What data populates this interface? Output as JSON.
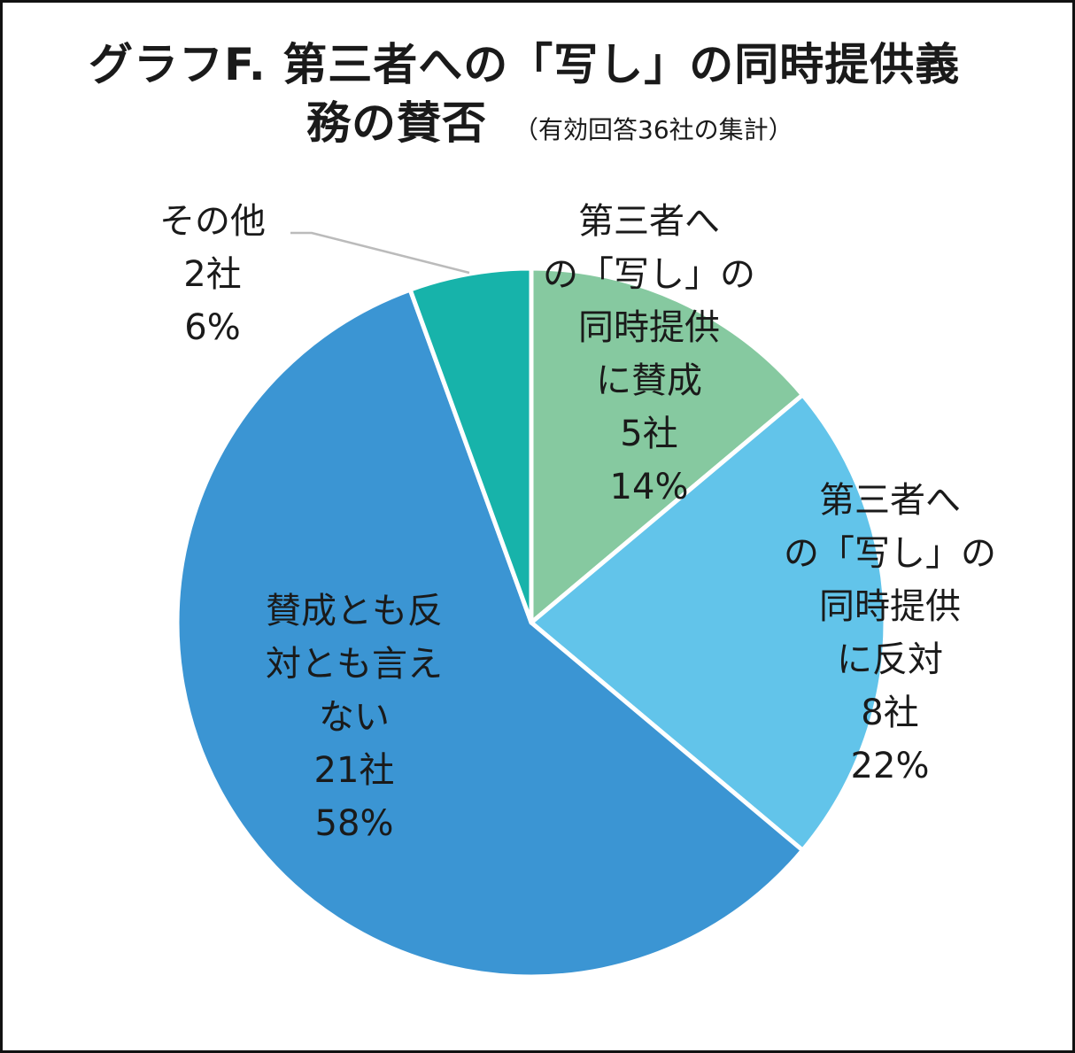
{
  "title": {
    "line1": "グラフF.  第三者への「写し」の同時提供義",
    "line2": "務の賛否",
    "note": "（有効回答36社の集計）"
  },
  "chart_data": {
    "type": "pie",
    "start_angle_deg": 0,
    "direction": "clockwise",
    "slices": [
      {
        "label_lines": [
          "第三者へ",
          "の「写し」の",
          "同時提供",
          "に賛成"
        ],
        "count_label": "5社",
        "percent_label": "14%",
        "value": 5,
        "percent": 14,
        "color": "#86c9a0"
      },
      {
        "label_lines": [
          "第三者へ",
          "の「写し」の",
          "同時提供",
          "に反対"
        ],
        "count_label": "8社",
        "percent_label": "22%",
        "value": 8,
        "percent": 22,
        "color": "#62c4ea"
      },
      {
        "label_lines": [
          "賛成とも反",
          "対とも言え",
          "ない"
        ],
        "count_label": "21社",
        "percent_label": "58%",
        "value": 21,
        "percent": 58,
        "color": "#3b95d3"
      },
      {
        "label_lines": [
          "その他"
        ],
        "count_label": "2社",
        "percent_label": "6%",
        "value": 2,
        "percent": 6,
        "color": "#17b3aa"
      }
    ],
    "total": 36,
    "slice_border_color": "#ffffff",
    "leader_line_color": "#bbbbbb"
  }
}
